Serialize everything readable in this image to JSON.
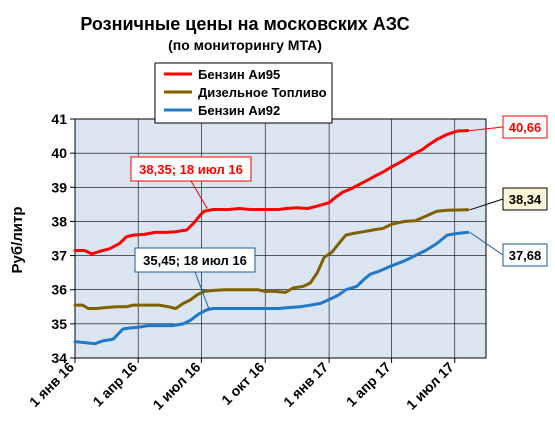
{
  "chart_data": {
    "type": "line",
    "title": "Розничные цены на московских АЗС",
    "subtitle": "(по мониторингу МТА)",
    "ylabel": "Руб/литр",
    "xlabel": "",
    "ylim": [
      34,
      41
    ],
    "yticks": [
      "34",
      "35",
      "36",
      "37",
      "38",
      "39",
      "40",
      "41"
    ],
    "x_range": [
      "2016-01-01",
      "2017-08-15"
    ],
    "xticks": [
      {
        "date": "2016-01-01",
        "label": "1 янв 16"
      },
      {
        "date": "2016-04-01",
        "label": "1 апр 16"
      },
      {
        "date": "2016-07-01",
        "label": "1 июл 16"
      },
      {
        "date": "2016-10-01",
        "label": "1 окт 16"
      },
      {
        "date": "2017-01-01",
        "label": "1 янв 17"
      },
      {
        "date": "2017-04-01",
        "label": "1 апр 17"
      },
      {
        "date": "2017-07-01",
        "label": "1 июл 17"
      }
    ],
    "grid": true,
    "legend_position": "top-center",
    "plot_background": "#dbe5f1",
    "series": [
      {
        "name": "Бензин Аи95",
        "color": "#ff0000",
        "points": [
          [
            "2016-01-01",
            37.15
          ],
          [
            "2016-01-15",
            37.15
          ],
          [
            "2016-01-25",
            37.05
          ],
          [
            "2016-02-05",
            37.12
          ],
          [
            "2016-02-20",
            37.2
          ],
          [
            "2016-03-05",
            37.35
          ],
          [
            "2016-03-15",
            37.55
          ],
          [
            "2016-03-25",
            37.6
          ],
          [
            "2016-04-10",
            37.62
          ],
          [
            "2016-04-25",
            37.68
          ],
          [
            "2016-05-10",
            37.68
          ],
          [
            "2016-05-25",
            37.7
          ],
          [
            "2016-06-10",
            37.75
          ],
          [
            "2016-06-20",
            37.95
          ],
          [
            "2016-06-30",
            38.2
          ],
          [
            "2016-07-05",
            38.3
          ],
          [
            "2016-07-18",
            38.35
          ],
          [
            "2016-08-10",
            38.35
          ],
          [
            "2016-08-25",
            38.38
          ],
          [
            "2016-09-10",
            38.35
          ],
          [
            "2016-10-01",
            38.35
          ],
          [
            "2016-10-20",
            38.35
          ],
          [
            "2016-11-01",
            38.38
          ],
          [
            "2016-11-15",
            38.4
          ],
          [
            "2016-12-01",
            38.38
          ],
          [
            "2016-12-15",
            38.45
          ],
          [
            "2017-01-01",
            38.55
          ],
          [
            "2017-01-10",
            38.7
          ],
          [
            "2017-01-20",
            38.85
          ],
          [
            "2017-02-01",
            38.95
          ],
          [
            "2017-02-15",
            39.1
          ],
          [
            "2017-03-01",
            39.25
          ],
          [
            "2017-03-10",
            39.35
          ],
          [
            "2017-03-20",
            39.45
          ],
          [
            "2017-04-01",
            39.6
          ],
          [
            "2017-04-15",
            39.75
          ],
          [
            "2017-05-01",
            39.95
          ],
          [
            "2017-05-15",
            40.1
          ],
          [
            "2017-05-25",
            40.25
          ],
          [
            "2017-06-05",
            40.4
          ],
          [
            "2017-06-20",
            40.55
          ],
          [
            "2017-07-05",
            40.65
          ],
          [
            "2017-07-20",
            40.66
          ]
        ]
      },
      {
        "name": "Дизельное Топливо",
        "color": "#806000",
        "points": [
          [
            "2016-01-01",
            35.55
          ],
          [
            "2016-01-12",
            35.55
          ],
          [
            "2016-01-20",
            35.45
          ],
          [
            "2016-02-01",
            35.45
          ],
          [
            "2016-02-15",
            35.48
          ],
          [
            "2016-03-01",
            35.5
          ],
          [
            "2016-03-15",
            35.5
          ],
          [
            "2016-03-25",
            35.55
          ],
          [
            "2016-04-15",
            35.55
          ],
          [
            "2016-05-01",
            35.55
          ],
          [
            "2016-05-15",
            35.5
          ],
          [
            "2016-05-25",
            35.45
          ],
          [
            "2016-06-05",
            35.6
          ],
          [
            "2016-06-15",
            35.7
          ],
          [
            "2016-06-25",
            35.85
          ],
          [
            "2016-07-05",
            35.95
          ],
          [
            "2016-07-20",
            35.98
          ],
          [
            "2016-08-05",
            36.0
          ],
          [
            "2016-09-01",
            36.0
          ],
          [
            "2016-09-20",
            36.0
          ],
          [
            "2016-10-01",
            35.95
          ],
          [
            "2016-10-15",
            35.95
          ],
          [
            "2016-10-30",
            35.92
          ],
          [
            "2016-11-10",
            36.05
          ],
          [
            "2016-11-25",
            36.1
          ],
          [
            "2016-12-05",
            36.2
          ],
          [
            "2016-12-15",
            36.5
          ],
          [
            "2016-12-25",
            36.95
          ],
          [
            "2017-01-05",
            37.1
          ],
          [
            "2017-01-15",
            37.35
          ],
          [
            "2017-01-25",
            37.6
          ],
          [
            "2017-02-05",
            37.65
          ],
          [
            "2017-02-20",
            37.7
          ],
          [
            "2017-03-05",
            37.75
          ],
          [
            "2017-03-20",
            37.8
          ],
          [
            "2017-04-01",
            37.92
          ],
          [
            "2017-04-20",
            38.0
          ],
          [
            "2017-05-05",
            38.02
          ],
          [
            "2017-05-20",
            38.15
          ],
          [
            "2017-06-05",
            38.3
          ],
          [
            "2017-06-20",
            38.33
          ],
          [
            "2017-07-20",
            38.34
          ]
        ]
      },
      {
        "name": "Бензин Аи92",
        "color": "#1f78c8",
        "points": [
          [
            "2016-01-01",
            34.48
          ],
          [
            "2016-01-15",
            34.45
          ],
          [
            "2016-01-30",
            34.42
          ],
          [
            "2016-02-10",
            34.5
          ],
          [
            "2016-02-25",
            34.55
          ],
          [
            "2016-03-10",
            34.85
          ],
          [
            "2016-03-20",
            34.88
          ],
          [
            "2016-04-01",
            34.9
          ],
          [
            "2016-04-15",
            34.95
          ],
          [
            "2016-05-05",
            34.95
          ],
          [
            "2016-05-20",
            34.95
          ],
          [
            "2016-06-05",
            35.0
          ],
          [
            "2016-06-15",
            35.1
          ],
          [
            "2016-06-28",
            35.3
          ],
          [
            "2016-07-10",
            35.42
          ],
          [
            "2016-07-18",
            35.45
          ],
          [
            "2016-08-15",
            35.45
          ],
          [
            "2016-09-15",
            35.45
          ],
          [
            "2016-10-01",
            35.45
          ],
          [
            "2016-10-20",
            35.45
          ],
          [
            "2016-11-05",
            35.48
          ],
          [
            "2016-11-20",
            35.5
          ],
          [
            "2016-12-05",
            35.55
          ],
          [
            "2016-12-20",
            35.6
          ],
          [
            "2017-01-05",
            35.75
          ],
          [
            "2017-01-15",
            35.85
          ],
          [
            "2017-01-25",
            36.0
          ],
          [
            "2017-02-10",
            36.1
          ],
          [
            "2017-02-20",
            36.3
          ],
          [
            "2017-03-01",
            36.45
          ],
          [
            "2017-03-15",
            36.55
          ],
          [
            "2017-04-01",
            36.7
          ],
          [
            "2017-04-20",
            36.85
          ],
          [
            "2017-05-05",
            37.0
          ],
          [
            "2017-05-20",
            37.15
          ],
          [
            "2017-06-05",
            37.35
          ],
          [
            "2017-06-20",
            37.6
          ],
          [
            "2017-07-05",
            37.65
          ],
          [
            "2017-07-20",
            37.68
          ]
        ]
      }
    ],
    "annotations": [
      {
        "text": "40,66",
        "color": "#ff0000",
        "series": 0,
        "at": "end"
      },
      {
        "text": "38,34",
        "color": "#000000",
        "series": 1,
        "at": "end"
      },
      {
        "text": "37,68",
        "color": "#000000",
        "series": 2,
        "at": "end"
      },
      {
        "text": "38,35;  18 июл 16",
        "color": "#ff0000",
        "series": 0,
        "at": "2016-07-18"
      },
      {
        "text": "35,45;  18 июл 16",
        "color": "#000000",
        "series": 2,
        "at": "2016-07-18"
      }
    ]
  }
}
